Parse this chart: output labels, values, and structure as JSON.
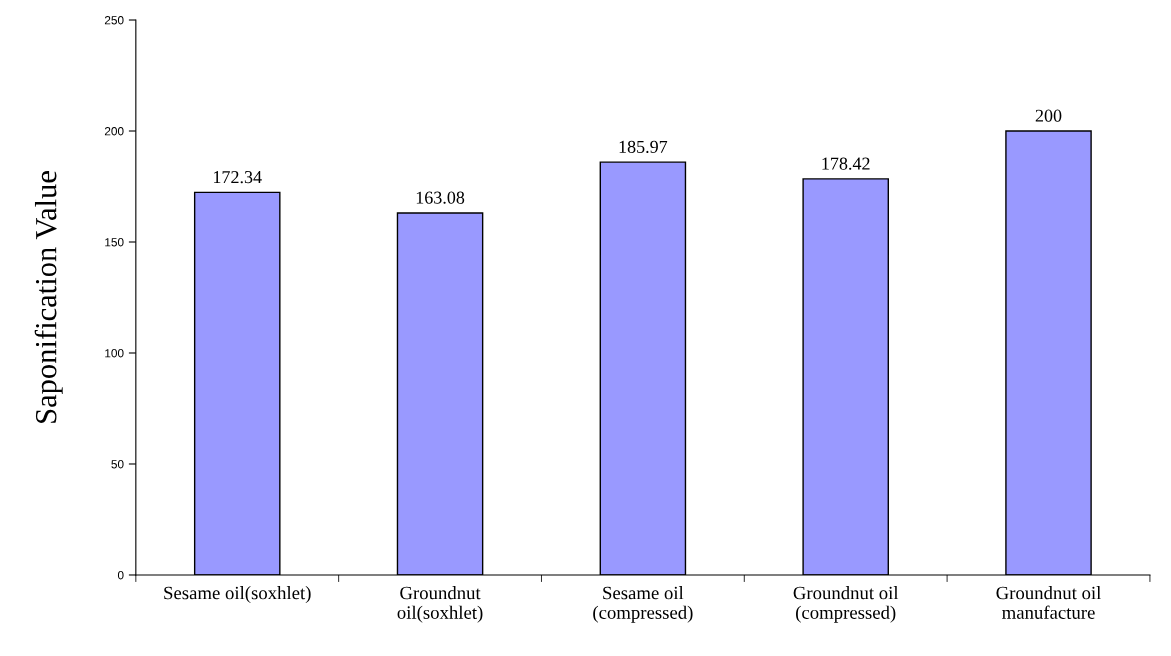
{
  "chart_data": {
    "type": "bar",
    "ylabel": "Saponification Value",
    "categories": [
      "Sesame oil(soxhlet)",
      "Groundnut\noil(soxhlet)",
      "Sesame oil\n(compressed)",
      "Groundnut oil\n(compressed)",
      "Groundnut oil\nmanufacture"
    ],
    "values": [
      172.34,
      163.08,
      185.97,
      178.42,
      200
    ],
    "color": "#9999ff",
    "ylim": [
      0,
      250
    ],
    "yticks": [
      0,
      50,
      100,
      150,
      200,
      250
    ],
    "data_labels": true,
    "grid": false,
    "legend": false
  }
}
